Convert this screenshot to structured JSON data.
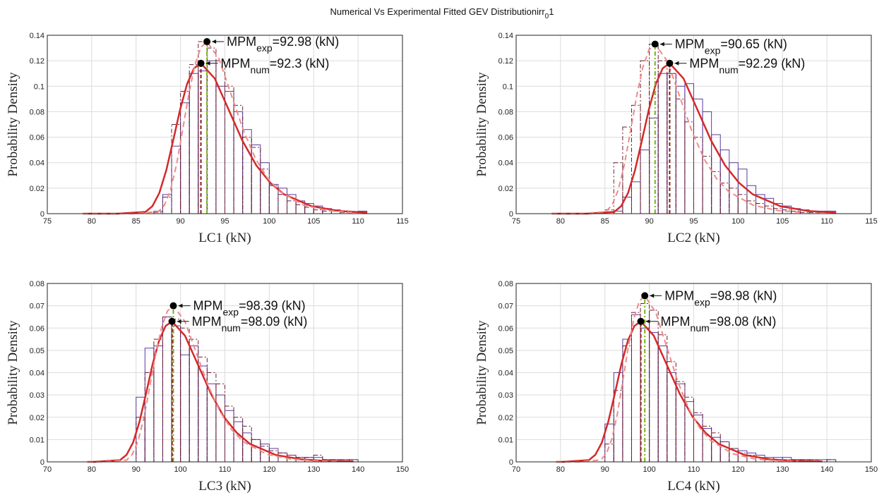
{
  "title": [
    "Numerical Vs Experimental Fitted GEV Distributionirr",
    "0",
    "1"
  ],
  "chart_data": [
    {
      "type": "histogram",
      "xlabel": "LC1 (kN)",
      "ylabel": "Probability Density",
      "xlim": [
        75,
        115
      ],
      "ylim": [
        0,
        0.14
      ],
      "xticks": [
        75,
        80,
        85,
        90,
        95,
        100,
        105,
        110,
        115
      ],
      "yticks": [
        0,
        0.02,
        0.04,
        0.06,
        0.08,
        0.1,
        0.12,
        0.14
      ],
      "grid": true,
      "bins": [
        87,
        88,
        89,
        90,
        91,
        92,
        93,
        94,
        95,
        96,
        97,
        98,
        99,
        100,
        101,
        102,
        103,
        104,
        105,
        106,
        107,
        108,
        109,
        110,
        111
      ],
      "series": [
        {
          "color": "#5a3a9e",
          "style": "solid",
          "values": [
            0.002,
            0.015,
            0.053,
            0.087,
            0.11,
            0.112,
            0.12,
            0.1,
            0.096,
            0.08,
            0.066,
            0.054,
            0.04,
            0.023,
            0.02,
            0.015,
            0.01,
            0.008,
            0.006,
            0.004,
            0.003,
            0.002,
            0.001,
            0.002
          ]
        },
        {
          "color": "#6b1e2e",
          "style": "dashdot",
          "values": [
            0.001,
            0.013,
            0.07,
            0.096,
            0.117,
            0.135,
            0.13,
            0.12,
            0.1,
            0.085,
            0.06,
            0.052,
            0.035,
            0.022,
            0.015,
            0.01,
            0.007,
            0.005,
            0.003,
            0.002,
            0.002,
            0.001,
            0.001,
            0
          ]
        }
      ],
      "curves": [
        {
          "color": "#d42a2a",
          "style": "solid",
          "x": [
            79,
            82.94,
            86.06,
            86.84,
            87.62,
            88.4,
            89.18,
            89.96,
            90.74,
            91.52,
            92.3,
            93.86,
            95.42,
            96.98,
            98.54,
            100.1,
            101.66,
            104.78,
            107.9,
            111.02
          ],
          "values": [
            0,
            0,
            0.0014,
            0.0059,
            0.0163,
            0.0341,
            0.0576,
            0.0818,
            0.1017,
            0.1141,
            0.118,
            0.1061,
            0.0817,
            0.0572,
            0.0379,
            0.0243,
            0.0152,
            0.0058,
            0.0021,
            0.0008
          ]
        },
        {
          "color": "#f08a8a",
          "style": "dashed",
          "x": [
            79,
            84.79,
            87.52,
            88.2,
            88.88,
            89.57,
            90.25,
            90.93,
            91.61,
            92.3,
            92.98,
            94.35,
            95.71,
            97.08,
            98.44,
            99.81,
            101.17,
            103.9,
            106.63,
            109.36
          ],
          "values": [
            0,
            0,
            0.0016,
            0.0068,
            0.0186,
            0.039,
            0.0659,
            0.0936,
            0.1164,
            0.1305,
            0.135,
            0.1214,
            0.0934,
            0.0655,
            0.0433,
            0.0278,
            0.0174,
            0.0066,
            0.0024,
            0.0009
          ]
        }
      ],
      "mpm": [
        {
          "label": "MPM",
          "sub": "exp",
          "text": "=92.98 (kN)",
          "x": 92.98,
          "y": 0.135,
          "color": "#7ab317"
        },
        {
          "label": "MPM",
          "sub": "num",
          "text": "=92.3 (kN)",
          "x": 92.3,
          "y": 0.118,
          "color": "#8b1a1a"
        }
      ]
    },
    {
      "type": "histogram",
      "xlabel": "LC2 (kN)",
      "ylabel": "Probability Density",
      "xlim": [
        75,
        115
      ],
      "ylim": [
        0,
        0.14
      ],
      "xticks": [
        75,
        80,
        85,
        90,
        95,
        100,
        105,
        110,
        115
      ],
      "yticks": [
        0,
        0.02,
        0.04,
        0.06,
        0.08,
        0.1,
        0.12,
        0.14
      ],
      "grid": true,
      "bins": [
        85,
        86,
        87,
        88,
        89,
        90,
        91,
        92,
        93,
        94,
        95,
        96,
        97,
        98,
        99,
        100,
        101,
        102,
        103,
        104,
        105,
        106,
        107,
        108,
        109,
        110,
        111
      ],
      "series": [
        {
          "color": "#5a3a9e",
          "style": "solid",
          "values": [
            0,
            0.002,
            0.013,
            0.025,
            0.05,
            0.075,
            0.11,
            0.11,
            0.1,
            0.102,
            0.09,
            0.08,
            0.062,
            0.05,
            0.04,
            0.035,
            0.022,
            0.015,
            0.012,
            0.008,
            0.006,
            0.004,
            0.003,
            0.002,
            0.002,
            0.002
          ]
        },
        {
          "color": "#6b1e2e",
          "style": "dashdot",
          "values": [
            0.003,
            0.04,
            0.068,
            0.085,
            0.12,
            0.133,
            0.12,
            0.11,
            0.09,
            0.072,
            0.06,
            0.045,
            0.033,
            0.024,
            0.02,
            0.015,
            0.01,
            0.008,
            0.006,
            0.004,
            0.003,
            0.002,
            0.001,
            0.001,
            0.001,
            0
          ]
        }
      ],
      "curves": [
        {
          "color": "#d42a2a",
          "style": "solid",
          "x": [
            79,
            82.93,
            86.05,
            86.83,
            87.61,
            88.39,
            89.17,
            89.95,
            90.73,
            91.51,
            92.29,
            93.85,
            95.41,
            96.97,
            98.53,
            100.09,
            101.65,
            104.77,
            107.89,
            111.01
          ],
          "values": [
            0,
            0,
            0.0014,
            0.0059,
            0.0163,
            0.0341,
            0.0576,
            0.0818,
            0.1017,
            0.1141,
            0.118,
            0.1061,
            0.0817,
            0.0572,
            0.0379,
            0.0243,
            0.0152,
            0.0058,
            0.0021,
            0.0008
          ]
        },
        {
          "color": "#f08a8a",
          "style": "dashed",
          "x": [
            79,
            82.34,
            85.11,
            85.8,
            86.49,
            87.19,
            87.88,
            88.57,
            89.26,
            89.96,
            90.65,
            92.04,
            93.42,
            94.81,
            96.19,
            97.58,
            98.96,
            101.73,
            104.5,
            107.27
          ],
          "values": [
            0,
            0,
            0.0016,
            0.0067,
            0.0184,
            0.0384,
            0.0649,
            0.0922,
            0.1146,
            0.1286,
            0.133,
            0.1196,
            0.092,
            0.0645,
            0.0427,
            0.0274,
            0.0172,
            0.0065,
            0.0024,
            0.0009
          ]
        }
      ],
      "mpm": [
        {
          "label": "MPM",
          "sub": "exp",
          "text": "=90.65 (kN)",
          "x": 90.65,
          "y": 0.133,
          "color": "#7ab317"
        },
        {
          "label": "MPM",
          "sub": "num",
          "text": "=92.29 (kN)",
          "x": 92.29,
          "y": 0.118,
          "color": "#8b1a1a"
        }
      ]
    },
    {
      "type": "histogram",
      "xlabel": "LC3 (kN)",
      "ylabel": "Probability Density",
      "xlim": [
        70,
        150
      ],
      "ylim": [
        0,
        0.08
      ],
      "xticks": [
        70,
        80,
        90,
        100,
        110,
        120,
        130,
        140,
        150
      ],
      "yticks": [
        0,
        0.01,
        0.02,
        0.03,
        0.04,
        0.05,
        0.06,
        0.07,
        0.08
      ],
      "grid": true,
      "bins": [
        90,
        92,
        94,
        96,
        98,
        100,
        102,
        104,
        106,
        108,
        110,
        112,
        114,
        116,
        118,
        120,
        122,
        124,
        126,
        128,
        130,
        132,
        134,
        136,
        138,
        140,
        142
      ],
      "series": [
        {
          "color": "#5a3a9e",
          "style": "solid",
          "values": [
            0.029,
            0.051,
            0.052,
            0.065,
            0.061,
            0.048,
            0.052,
            0.043,
            0.035,
            0.03,
            0.023,
            0.018,
            0.013,
            0.01,
            0.008,
            0.006,
            0.004,
            0.003,
            0.002,
            0.002,
            0.002,
            0.001,
            0.001,
            0.001,
            0.001,
            0
          ]
        },
        {
          "color": "#6b1e2e",
          "style": "dashdot",
          "values": [
            0.02,
            0.04,
            0.055,
            0.065,
            0.064,
            0.06,
            0.055,
            0.047,
            0.04,
            0.035,
            0.025,
            0.02,
            0.016,
            0.01,
            0.007,
            0.005,
            0.004,
            0.003,
            0.002,
            0.002,
            0.003,
            0.001,
            0.001,
            0.001,
            0.001,
            0
          ]
        }
      ],
      "curves": [
        {
          "color": "#d42a2a",
          "style": "solid",
          "x": [
            79,
            80.57,
            86.41,
            87.87,
            89.33,
            90.79,
            92.25,
            93.71,
            95.17,
            96.63,
            98.09,
            101.01,
            103.93,
            106.85,
            109.77,
            112.69,
            115.61,
            121.45,
            127.29,
            133.13,
            138.97
          ],
          "values": [
            0,
            0,
            0.0008,
            0.0032,
            0.0087,
            0.0182,
            0.0307,
            0.0437,
            0.0543,
            0.0609,
            0.063,
            0.0566,
            0.0436,
            0.0306,
            0.0202,
            0.013,
            0.0081,
            0.0031,
            0.0011,
            0.0004,
            0.0002
          ]
        },
        {
          "color": "#f08a8a",
          "style": "dashed",
          "x": [
            79,
            82.61,
            87.87,
            89.18,
            90.5,
            91.81,
            93.13,
            94.44,
            95.76,
            97.07,
            98.39,
            101.02,
            103.65,
            106.28,
            108.91,
            111.54,
            114.17,
            119.43,
            124.69,
            129.95,
            135.21
          ],
          "values": [
            0,
            0,
            0.0008,
            0.0035,
            0.0097,
            0.0202,
            0.0342,
            0.0485,
            0.0603,
            0.0677,
            0.07,
            0.0629,
            0.0484,
            0.034,
            0.0225,
            0.0144,
            0.009,
            0.0034,
            0.0013,
            0.0005,
            0.0002
          ]
        }
      ],
      "mpm": [
        {
          "label": "MPM",
          "sub": "exp",
          "text": "=98.39 (kN)",
          "x": 98.39,
          "y": 0.07,
          "color": "#7ab317"
        },
        {
          "label": "MPM",
          "sub": "num",
          "text": "=98.09 (kN)",
          "x": 98.09,
          "y": 0.063,
          "color": "#8b1a1a"
        }
      ]
    },
    {
      "type": "histogram",
      "xlabel": "LC4 (kN)",
      "ylabel": "Probability Density",
      "xlim": [
        70,
        150
      ],
      "ylim": [
        0,
        0.08
      ],
      "xticks": [
        70,
        80,
        90,
        100,
        110,
        120,
        130,
        140,
        150
      ],
      "yticks": [
        0,
        0.01,
        0.02,
        0.03,
        0.04,
        0.05,
        0.06,
        0.07,
        0.08
      ],
      "grid": true,
      "bins": [
        90,
        92,
        94,
        96,
        98,
        100,
        102,
        104,
        106,
        108,
        110,
        112,
        114,
        116,
        118,
        120,
        122,
        124,
        126,
        128,
        130,
        132,
        134,
        136,
        138,
        140,
        142
      ],
      "series": [
        {
          "color": "#5a3a9e",
          "style": "solid",
          "values": [
            0.017,
            0.04,
            0.055,
            0.066,
            0.06,
            0.058,
            0.052,
            0.04,
            0.035,
            0.027,
            0.021,
            0.015,
            0.011,
            0.009,
            0.006,
            0.005,
            0.004,
            0.003,
            0.002,
            0.002,
            0.002,
            0.001,
            0.001,
            0.001,
            0.001,
            0.001
          ]
        },
        {
          "color": "#6b1e2e",
          "style": "dashdot",
          "values": [
            0.008,
            0.032,
            0.052,
            0.067,
            0.071,
            0.068,
            0.057,
            0.045,
            0.036,
            0.029,
            0.022,
            0.016,
            0.013,
            0.009,
            0.006,
            0.004,
            0.003,
            0.002,
            0.001,
            0.001,
            0.001,
            0.001,
            0.001,
            0.001,
            0,
            0.001
          ]
        }
      ],
      "curves": [
        {
          "color": "#d42a2a",
          "style": "solid",
          "x": [
            79,
            80.56,
            86.4,
            87.86,
            89.32,
            90.78,
            92.24,
            93.7,
            95.16,
            96.62,
            98.08,
            101,
            103.92,
            106.84,
            109.76,
            112.68,
            115.6,
            121.44,
            127.28,
            133.12,
            138.96
          ],
          "values": [
            0,
            0,
            0.0008,
            0.0032,
            0.0087,
            0.0182,
            0.0307,
            0.0437,
            0.0543,
            0.0609,
            0.063,
            0.0566,
            0.0436,
            0.0306,
            0.0202,
            0.013,
            0.0081,
            0.0031,
            0.0011,
            0.0004,
            0.0002
          ]
        },
        {
          "color": "#f08a8a",
          "style": "dashed",
          "x": [
            79,
            84.16,
            89.1,
            90.33,
            91.57,
            92.8,
            94.04,
            95.27,
            96.51,
            97.74,
            98.98,
            101.45,
            103.92,
            106.39,
            108.86,
            111.33,
            113.8,
            118.74,
            123.68,
            128.62,
            133.56
          ],
          "values": [
            0,
            0,
            0.0009,
            0.0037,
            0.0103,
            0.0215,
            0.0364,
            0.0516,
            0.0642,
            0.072,
            0.0745,
            0.067,
            0.0516,
            0.0361,
            0.0239,
            0.0153,
            0.0096,
            0.0037,
            0.0013,
            0.0005,
            0.0002
          ]
        }
      ],
      "mpm": [
        {
          "label": "MPM",
          "sub": "exp",
          "text": "=98.98 (kN)",
          "x": 98.98,
          "y": 0.0745,
          "color": "#7ab317"
        },
        {
          "label": "MPM",
          "sub": "num",
          "text": "=98.08 (kN)",
          "x": 98.08,
          "y": 0.063,
          "color": "#8b1a1a"
        }
      ]
    }
  ]
}
